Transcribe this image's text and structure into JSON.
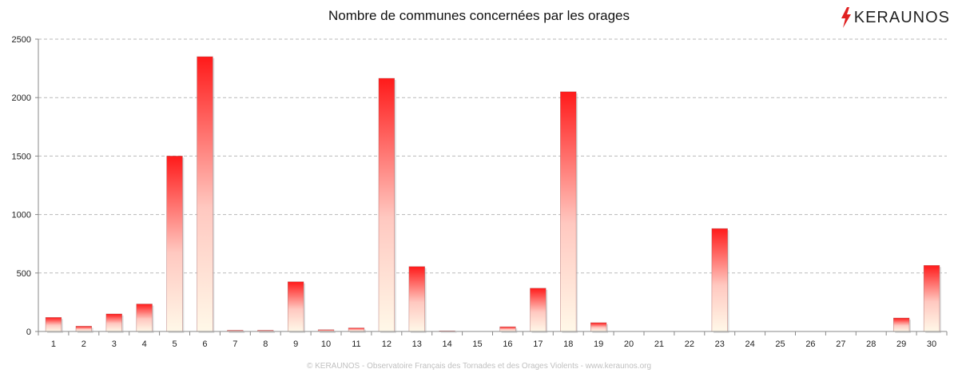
{
  "header": {
    "title": "Nombre de communes concernées par les orages",
    "logo_text": "KERAUNOS",
    "logo_icon": "lightning-bolt-icon"
  },
  "footer": {
    "credit": "© KERAUNOS - Observatoire Français des Tornades et des Orages Violents - www.keraunos.org"
  },
  "colors": {
    "bar_top": "#ff1a1a",
    "bar_bottom": "#fff8e8",
    "grid": "#b9b9b9",
    "logo_bolt": "#e02020"
  },
  "chart_data": {
    "type": "bar",
    "title": "Nombre de communes concernées par les orages",
    "xlabel": "",
    "ylabel": "",
    "categories": [
      "1",
      "2",
      "3",
      "4",
      "5",
      "6",
      "7",
      "8",
      "9",
      "10",
      "11",
      "12",
      "13",
      "14",
      "15",
      "16",
      "17",
      "18",
      "19",
      "20",
      "21",
      "22",
      "23",
      "24",
      "25",
      "26",
      "27",
      "28",
      "29",
      "30"
    ],
    "values": [
      120,
      45,
      150,
      235,
      1500,
      2350,
      10,
      10,
      425,
      15,
      30,
      2165,
      555,
      5,
      0,
      40,
      370,
      2050,
      75,
      0,
      0,
      0,
      880,
      0,
      0,
      0,
      0,
      0,
      115,
      565
    ],
    "ylim": [
      0,
      2500
    ],
    "yticks": [
      0,
      500,
      1000,
      1500,
      2000,
      2500
    ],
    "grid": true,
    "legend": "none"
  }
}
